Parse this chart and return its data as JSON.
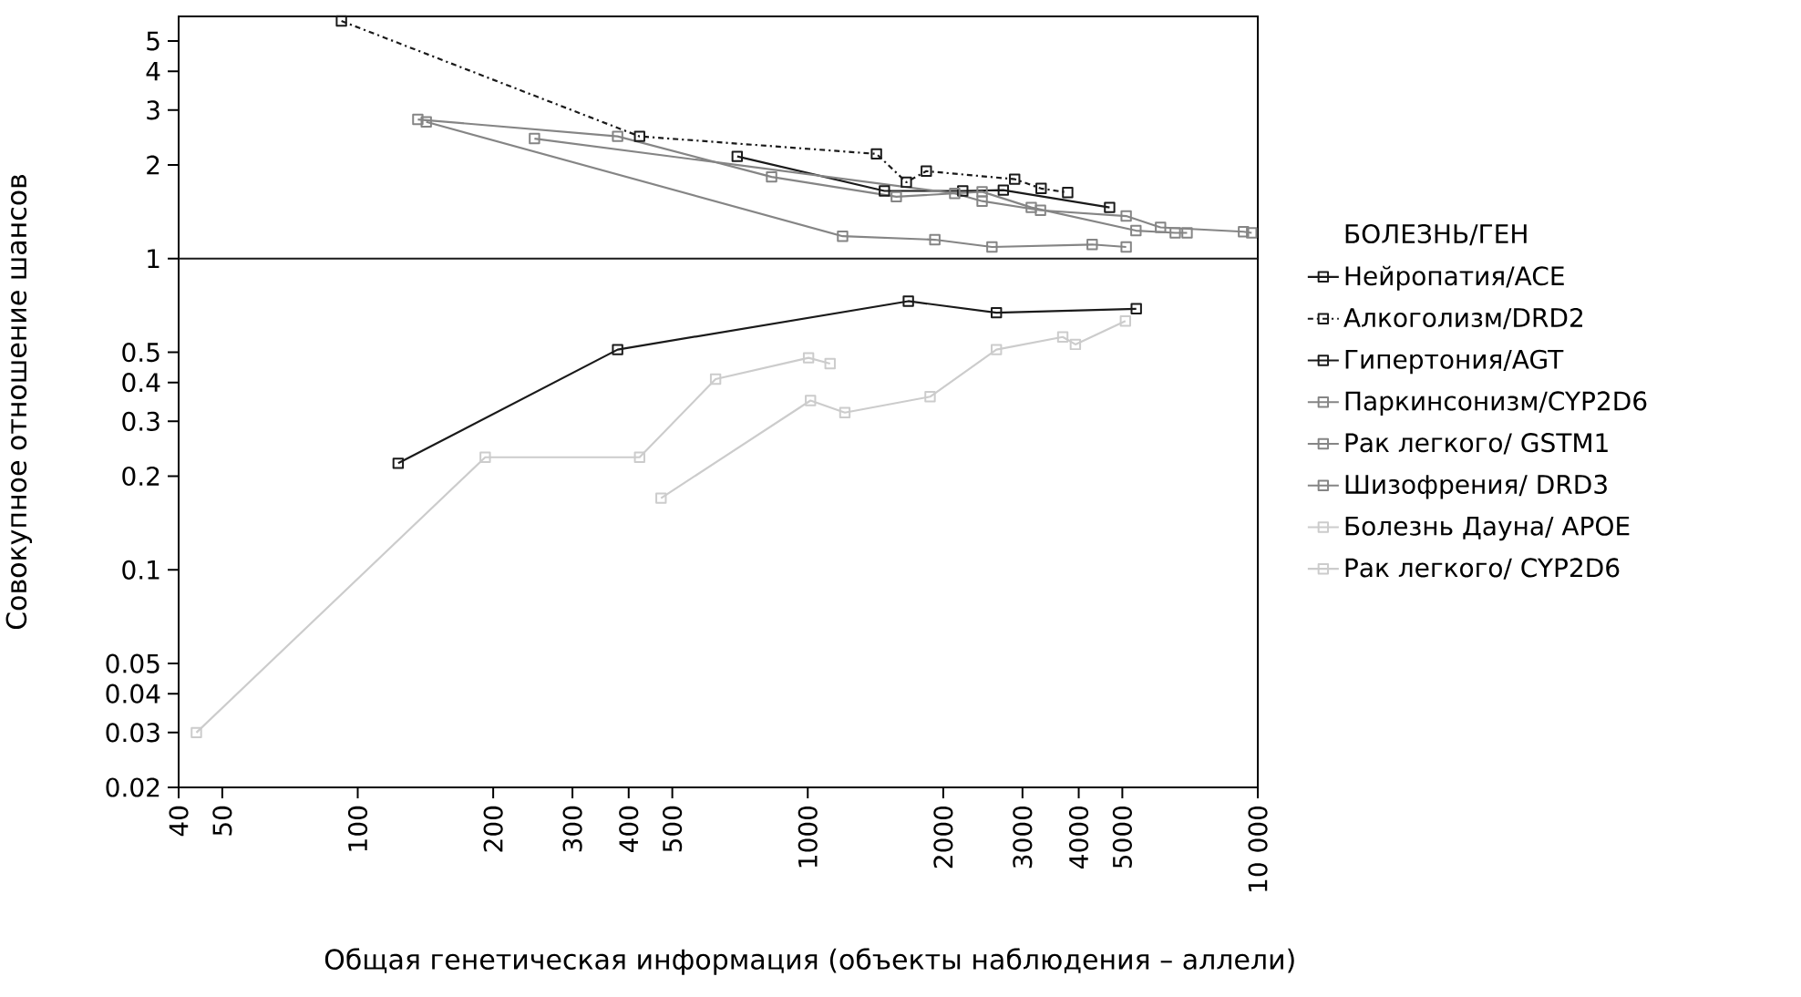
{
  "chart_data": {
    "type": "line",
    "xlabel": "Общая генетическая информация (объекты наблюдения – аллели)",
    "ylabel": "Совокупное отношение шансов",
    "legend_title": "БОЛЕЗНЬ/ГЕН",
    "log": "xy",
    "marker": "square",
    "line_style": "solid",
    "legend": "right",
    "grid": false,
    "xlim": [
      40,
      10000
    ],
    "ylim": [
      0.02,
      6
    ],
    "xticks": [
      40,
      50,
      100,
      200,
      300,
      400,
      500,
      1000,
      2000,
      3000,
      4000,
      5000,
      {
        "value": 10000,
        "label": "10 000"
      }
    ],
    "yticks": [
      0.02,
      0.03,
      0.04,
      0.05,
      0.1,
      0.2,
      0.3,
      0.4,
      0.5,
      1,
      2,
      3,
      4,
      5
    ],
    "ref_lines": [
      {
        "axis": "y",
        "value": 1,
        "color": "#1a1a1a"
      }
    ],
    "series": [
      {
        "name": "Нейропатия/ACE",
        "color": "#1a1a1a",
        "x": [
          697,
          1480,
          2210,
          2720,
          4685
        ],
        "values": [
          2.13,
          1.65,
          1.65,
          1.66,
          1.46
        ]
      },
      {
        "name": "Алкоголизм/DRD2",
        "color": "#1a1a1a",
        "line_style": "dashed",
        "x": [
          92,
          423,
          1421,
          1656,
          1834,
          2882,
          3300,
          3781
        ],
        "values": [
          5.8,
          2.47,
          2.17,
          1.76,
          1.91,
          1.8,
          1.68,
          1.63
        ]
      },
      {
        "name": "Гипертония/AGT",
        "color": "#1a1a1a",
        "x": [
          123,
          378,
          1673,
          2625,
          5370
        ],
        "values": [
          0.22,
          0.51,
          0.73,
          0.67,
          0.69
        ]
      },
      {
        "name": "Паркинсонизм/CYP2D6",
        "color": "#858585",
        "x": [
          136,
          378,
          831,
          1573,
          2440,
          3138,
          5360,
          6555,
          6965
        ],
        "values": [
          2.8,
          2.47,
          1.83,
          1.58,
          1.64,
          1.46,
          1.23,
          1.21,
          1.21
        ]
      },
      {
        "name": "Рак легкого/ GSTM1",
        "color": "#858585",
        "x": [
          142,
          1195,
          1916,
          2566,
          4285,
          5100
        ],
        "values": [
          2.75,
          1.18,
          1.15,
          1.09,
          1.11,
          1.09
        ]
      },
      {
        "name": "Шизофрения/ DRD3",
        "color": "#858585",
        "x": [
          247,
          2121,
          2440,
          3290,
          5100,
          6080,
          9295,
          9690
        ],
        "values": [
          2.43,
          1.62,
          1.53,
          1.43,
          1.37,
          1.26,
          1.22,
          1.21
        ]
      },
      {
        "name": "Болезнь Дауна/ APOE",
        "color": "#cccccc",
        "x": [
          43.8,
          192,
          423,
          624,
          1004,
          1121
        ],
        "values": [
          0.03,
          0.23,
          0.23,
          0.41,
          0.48,
          0.46
        ]
      },
      {
        "name": "Рак легкого/ CYP2D6",
        "color": "#cccccc",
        "x": [
          472,
          1014,
          1209,
          1870,
          2625,
          3687,
          3933,
          5080
        ],
        "values": [
          0.17,
          0.35,
          0.32,
          0.36,
          0.51,
          0.56,
          0.53,
          0.63
        ]
      }
    ]
  }
}
